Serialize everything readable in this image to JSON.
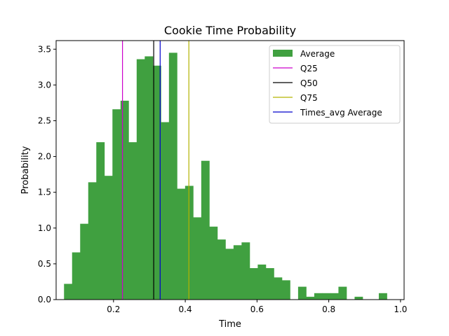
{
  "chart_data": {
    "type": "bar",
    "title": "Cookie Time Probability",
    "xlabel": "Time",
    "ylabel": "Probability",
    "xlim": [
      0.04,
      1.01
    ],
    "ylim": [
      0,
      3.62
    ],
    "xticks": [
      "0.2",
      "0.4",
      "0.6",
      "0.8",
      "1.0"
    ],
    "yticks": [
      "0.0",
      "0.5",
      "1.0",
      "1.5",
      "2.0",
      "2.5",
      "3.0",
      "3.5"
    ],
    "grid": false,
    "legend_position": "top-right",
    "histogram": {
      "name": "Average",
      "color": "#40a040",
      "bin_edges": [
        0.062,
        0.0845,
        0.107,
        0.1295,
        0.152,
        0.1745,
        0.197,
        0.2195,
        0.242,
        0.2645,
        0.287,
        0.3095,
        0.332,
        0.3545,
        0.377,
        0.3995,
        0.422,
        0.4445,
        0.467,
        0.4895,
        0.512,
        0.5345,
        0.557,
        0.5795,
        0.602,
        0.6245,
        0.647,
        0.6695,
        0.692,
        0.7145,
        0.737,
        0.7595,
        0.782,
        0.8045,
        0.827,
        0.8495,
        0.872,
        0.8945,
        0.917,
        0.9395,
        0.962
      ],
      "values": [
        0.22,
        0.66,
        1.06,
        1.64,
        2.2,
        1.73,
        2.66,
        2.78,
        2.2,
        3.36,
        3.4,
        3.27,
        2.48,
        3.45,
        1.55,
        1.59,
        1.15,
        1.94,
        1.02,
        0.84,
        0.71,
        0.76,
        0.8,
        0.44,
        0.49,
        0.44,
        0.31,
        0.27,
        0.0,
        0.18,
        0.04,
        0.09,
        0.09,
        0.09,
        0.18,
        0.0,
        0.04,
        0.0,
        0.0,
        0.09
      ]
    },
    "vlines": [
      {
        "name": "Q25",
        "x": 0.225,
        "color": "#cc00cc"
      },
      {
        "name": "Q50",
        "x": 0.312,
        "color": "#000000"
      },
      {
        "name": "Q75",
        "x": 0.41,
        "color": "#b3b300"
      },
      {
        "name": "Times_avg Average",
        "x": 0.33,
        "color": "#0000cc"
      }
    ],
    "legend": [
      "Average",
      "Q25",
      "Q50",
      "Q75",
      "Times_avg Average"
    ]
  }
}
